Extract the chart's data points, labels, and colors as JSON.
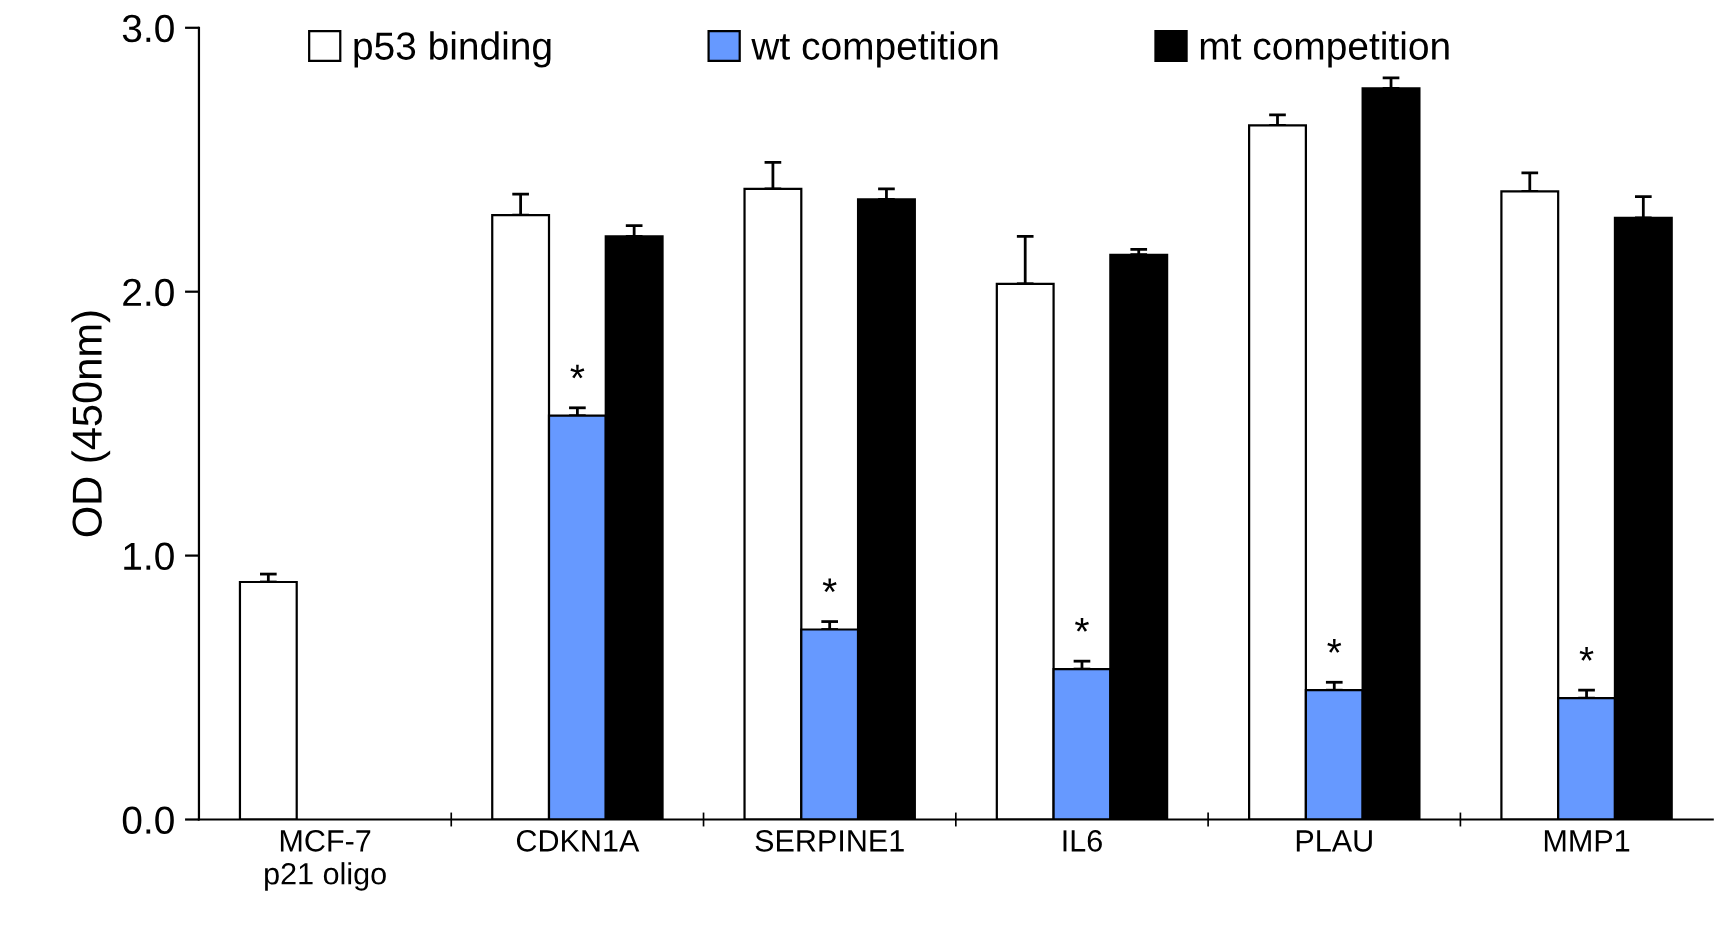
{
  "chart_data": {
    "type": "bar",
    "ylabel": "OD (450nm)",
    "categories": [
      "MCF-7\np21 oligo",
      "CDKN1A",
      "SERPINE1",
      "IL6",
      "PLAU",
      "MMP1"
    ],
    "series": [
      {
        "name": "p53 binding",
        "color": "#ffffff",
        "values": [
          0.9,
          2.29,
          2.39,
          2.03,
          2.63,
          2.38
        ],
        "errors": [
          [
            0.9,
            0.93
          ],
          [
            2.29,
            2.37
          ],
          [
            2.39,
            2.49
          ],
          [
            2.03,
            2.21
          ],
          [
            2.63,
            2.67
          ],
          [
            2.38,
            2.45
          ]
        ]
      },
      {
        "name": "wt competition",
        "color": "#6699ff",
        "values": [
          null,
          1.53,
          0.72,
          0.57,
          0.49,
          0.46
        ],
        "errors": [
          null,
          [
            1.53,
            1.56
          ],
          [
            0.72,
            0.75
          ],
          [
            0.57,
            0.6
          ],
          [
            0.49,
            0.52
          ],
          [
            0.46,
            0.49
          ]
        ]
      },
      {
        "name": "mt competition",
        "color": "#000000",
        "values": [
          null,
          2.21,
          2.35,
          2.14,
          2.77,
          2.28
        ],
        "errors": [
          null,
          [
            2.21,
            2.25
          ],
          [
            2.35,
            2.39
          ],
          [
            2.14,
            2.16
          ],
          [
            2.77,
            2.81
          ],
          [
            2.28,
            2.36
          ]
        ]
      }
    ],
    "annotations": [
      {
        "text": "*",
        "x": "CDKN1A",
        "y": 1.56
      },
      {
        "text": "*",
        "x": "SERPINE1",
        "y": 0.75
      },
      {
        "text": "*",
        "x": "IL6",
        "y": 0.6
      },
      {
        "text": "*",
        "x": "PLAU",
        "y": 0.52
      },
      {
        "text": "*",
        "x": "MMP1",
        "y": 0.49
      }
    ],
    "ylim": [
      0,
      3.0
    ],
    "yticks": [
      {
        "value": 0,
        "label": "0.0"
      },
      {
        "value": 1,
        "label": "1.0"
      },
      {
        "value": 2,
        "label": "2.0"
      },
      {
        "value": 3,
        "label": "3.0"
      }
    ],
    "grid": false,
    "legend": "top"
  }
}
